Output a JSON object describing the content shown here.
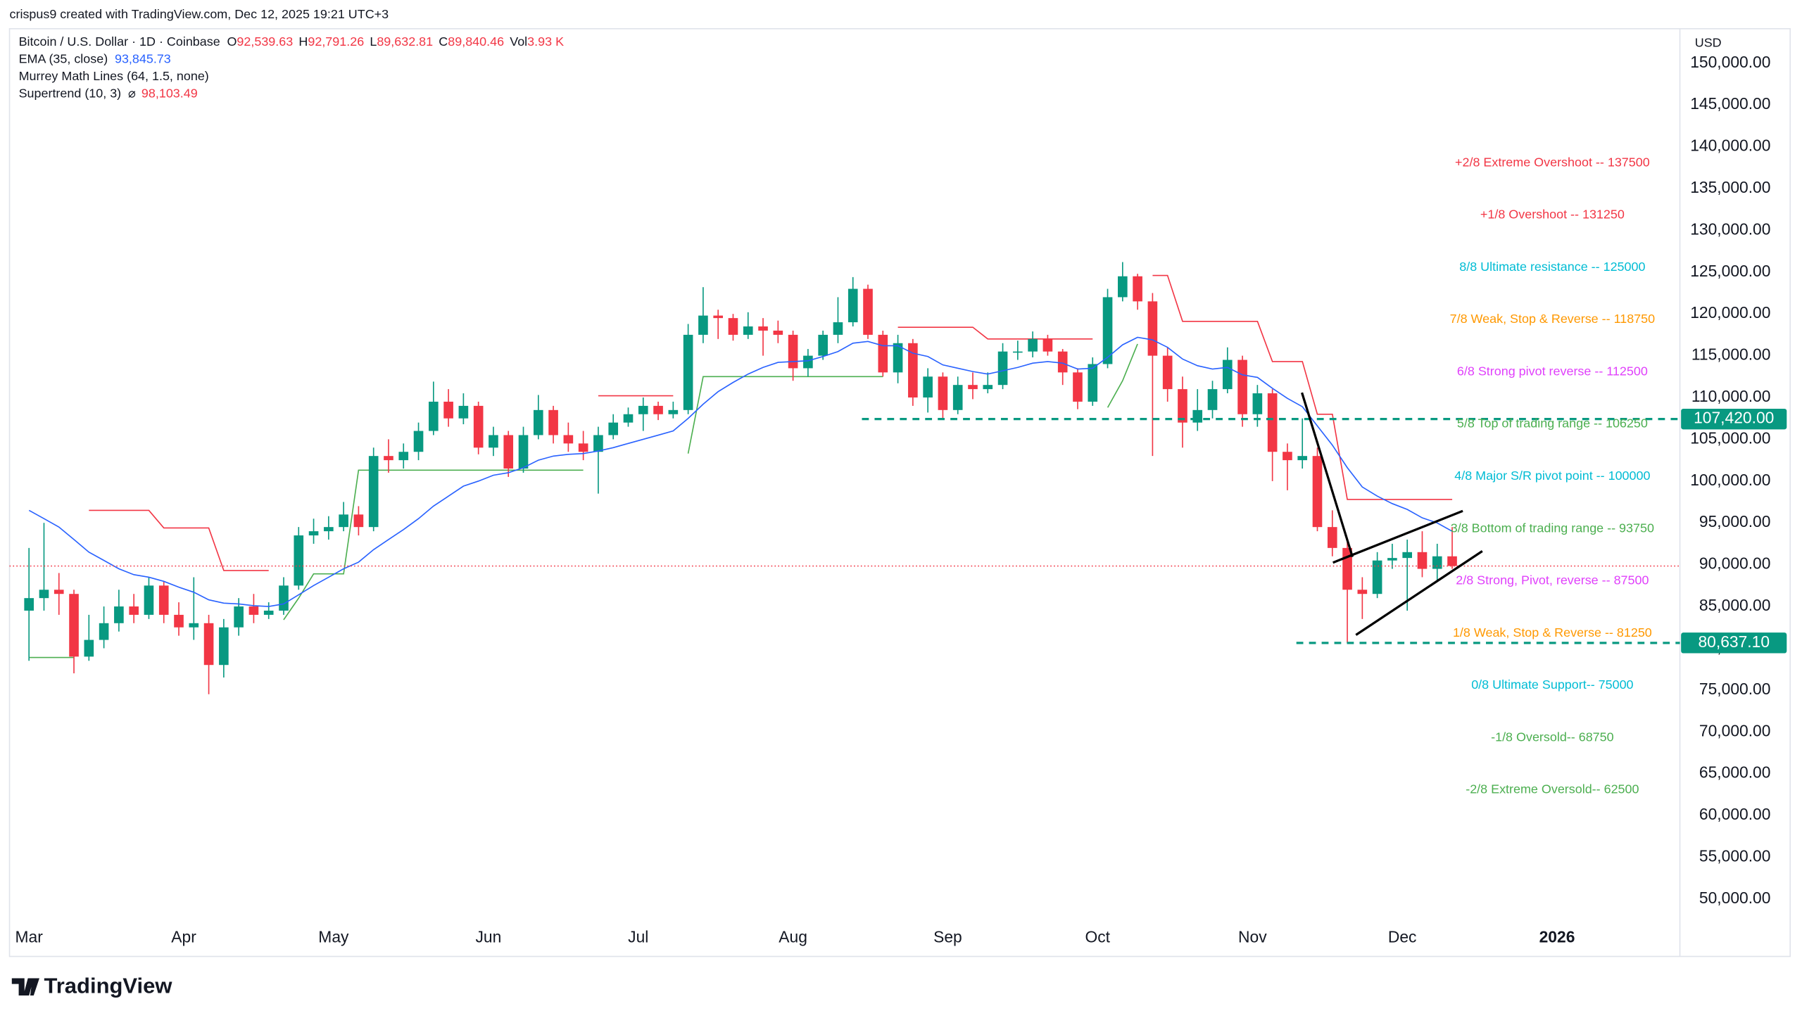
{
  "header": {
    "credit": "crispus9 created with TradingView.com, Dec 12, 2025 19:21 UTC+3",
    "logo": "TradingView",
    "currency": "USD"
  },
  "legend": {
    "symbol": "Bitcoin / U.S. Dollar · 1D · Coinbase",
    "ohlc": [
      {
        "key": "O",
        "value": "92,539.63"
      },
      {
        "key": "H",
        "value": "92,791.26"
      },
      {
        "key": "L",
        "value": "89,632.81"
      },
      {
        "key": "C",
        "value": "89,840.46"
      }
    ],
    "volume": {
      "key": "Vol",
      "value": "3.93 K"
    },
    "indicators": [
      {
        "name": "EMA (35, close)",
        "value": "93,845.73",
        "color": "#2962ff"
      },
      {
        "name": "Murrey Math Lines (64, 1.5, none)"
      },
      {
        "name": "Supertrend (10, 3)",
        "symbol": "⌀",
        "value": "98,103.49",
        "color": "#f23645"
      }
    ]
  },
  "chart_data": {
    "type": "candlestick",
    "up_color": "#089981",
    "down_color": "#f23645",
    "xlim": [
      -1.3,
      110.2
    ],
    "xticks": [
      {
        "value": 0,
        "label": "Mar"
      },
      {
        "value": 10.33,
        "label": "Apr"
      },
      {
        "value": 20.33,
        "label": "May"
      },
      {
        "value": 30.67,
        "label": "Jun"
      },
      {
        "value": 40.67,
        "label": "Jul"
      },
      {
        "value": 51,
        "label": "Aug"
      },
      {
        "value": 61.33,
        "label": "Sep"
      },
      {
        "value": 71.33,
        "label": "Oct"
      },
      {
        "value": 81.67,
        "label": "Nov"
      },
      {
        "value": 91.67,
        "label": "Dec"
      },
      {
        "value": 102,
        "label": "2026"
      }
    ],
    "ylim": [
      43130,
      154120
    ],
    "yticks": [
      {
        "value": 50000,
        "label": "50,000.00"
      },
      {
        "value": 55000,
        "label": "55,000.00"
      },
      {
        "value": 60000,
        "label": "60,000.00"
      },
      {
        "value": 65000,
        "label": "65,000.00"
      },
      {
        "value": 70000,
        "label": "70,000.00"
      },
      {
        "value": 75000,
        "label": "75,000.00"
      },
      {
        "value": 80000,
        "label": "80,000.00"
      },
      {
        "value": 85000,
        "label": "85,000.00"
      },
      {
        "value": 90000,
        "label": "90,000.00"
      },
      {
        "value": 95000,
        "label": "95,000.00"
      },
      {
        "value": 100000,
        "label": "100,000.00"
      },
      {
        "value": 105000,
        "label": "105,000.00"
      },
      {
        "value": 110000,
        "label": "110,000.00"
      },
      {
        "value": 115000,
        "label": "115,000.00"
      },
      {
        "value": 120000,
        "label": "120,000.00"
      },
      {
        "value": 125000,
        "label": "125,000.00"
      },
      {
        "value": 130000,
        "label": "130,000.00"
      },
      {
        "value": 135000,
        "label": "135,000.00"
      },
      {
        "value": 140000,
        "label": "140,000.00"
      },
      {
        "value": 145000,
        "label": "145,000.00"
      },
      {
        "value": 150000,
        "label": "150,000.00"
      }
    ],
    "open": [
      84500,
      86000,
      87000,
      86500,
      79000,
      81000,
      83000,
      85000,
      84000,
      87500,
      84000,
      82500,
      83000,
      78000,
      82500,
      85000,
      84000,
      84500,
      87500,
      93500,
      94000,
      94500,
      96000,
      94500,
      103000,
      102500,
      103500,
      106000,
      109500,
      107500,
      109000,
      104000,
      105500,
      101500,
      105500,
      108500,
      105500,
      104500,
      103500,
      105500,
      107000,
      108000,
      109000,
      108000,
      108500,
      117500,
      119800,
      119500,
      117500,
      118500,
      118000,
      117500,
      113500,
      115000,
      117500,
      119000,
      123000,
      117500,
      113000,
      116500,
      110000,
      112500,
      108500,
      111500,
      111000,
      111500,
      115500,
      115500,
      117000,
      115500,
      113000,
      109500,
      114000,
      122000,
      124500,
      121500,
      115000,
      111000,
      107000,
      108500,
      111000,
      114500,
      108000,
      110500,
      103500,
      102500,
      103000,
      94500,
      92000,
      87000,
      86500,
      90500,
      90800,
      91500,
      89500,
      91000
    ],
    "high": [
      92000,
      95000,
      89000,
      87000,
      84000,
      85000,
      87000,
      86500,
      88500,
      88000,
      85500,
      88500,
      84000,
      83500,
      86000,
      86500,
      85500,
      88500,
      94500,
      95500,
      95800,
      97500,
      97000,
      104000,
      105000,
      104500,
      107000,
      111900,
      111000,
      110500,
      109500,
      106500,
      106000,
      106500,
      110300,
      109000,
      107000,
      106000,
      106500,
      108000,
      108800,
      110000,
      109500,
      109500,
      118800,
      123200,
      120500,
      120000,
      120200,
      119500,
      119200,
      118000,
      115800,
      118000,
      122000,
      124400,
      123500,
      118000,
      117500,
      117000,
      113500,
      113000,
      112500,
      113000,
      113000,
      116500,
      116800,
      117900,
      117500,
      115800,
      113500,
      114800,
      123000,
      126200,
      124800,
      122500,
      116000,
      112500,
      111000,
      112000,
      116000,
      115000,
      111500,
      111000,
      104500,
      107500,
      104000,
      96500,
      93000,
      88500,
      91500,
      92500,
      93000,
      94000,
      92500,
      94500
    ],
    "low": [
      78500,
      84500,
      84000,
      77000,
      78500,
      80000,
      82000,
      83000,
      83500,
      83000,
      81500,
      81000,
      74500,
      76500,
      81500,
      83000,
      83500,
      84000,
      87000,
      92500,
      93000,
      94000,
      93500,
      94000,
      101000,
      101500,
      102500,
      105500,
      106500,
      106800,
      103200,
      103000,
      100500,
      101000,
      105000,
      104500,
      103500,
      102500,
      98500,
      105000,
      106500,
      106000,
      107300,
      107500,
      108000,
      116500,
      117000,
      116800,
      117000,
      115000,
      116500,
      112000,
      112500,
      114500,
      116500,
      118500,
      117000,
      112500,
      111700,
      109000,
      108200,
      107500,
      108000,
      109800,
      110500,
      111000,
      114500,
      114800,
      115000,
      111500,
      108600,
      109000,
      113500,
      121500,
      120500,
      103000,
      109500,
      104000,
      106000,
      107500,
      110500,
      106500,
      106500,
      100000,
      98900,
      101500,
      94000,
      91000,
      80637,
      83500,
      86000,
      89500,
      84500,
      88500,
      88000,
      89500
    ],
    "close": [
      86000,
      87000,
      86500,
      79000,
      81000,
      83000,
      85000,
      84000,
      87500,
      84000,
      82500,
      83000,
      78000,
      82500,
      85000,
      84000,
      84500,
      87500,
      93500,
      94000,
      94500,
      96000,
      94500,
      103000,
      102500,
      103500,
      106000,
      109500,
      107500,
      109000,
      104000,
      105500,
      101500,
      105500,
      108500,
      105500,
      104500,
      103500,
      105500,
      107000,
      108000,
      109000,
      108000,
      108500,
      117500,
      119800,
      119500,
      117500,
      118500,
      118000,
      117500,
      113500,
      115000,
      117500,
      119000,
      123000,
      117500,
      113000,
      116500,
      110000,
      112500,
      108500,
      111500,
      111000,
      111500,
      115500,
      115500,
      117000,
      115500,
      113000,
      109500,
      114000,
      122000,
      124500,
      121500,
      115000,
      111000,
      107000,
      108500,
      111000,
      114500,
      108000,
      110500,
      103500,
      102500,
      103000,
      94500,
      92000,
      87000,
      86500,
      90500,
      90800,
      91500,
      89500,
      91000,
      89840
    ],
    "ema": {
      "color": "#2962ff",
      "values": [
        96500,
        95500,
        94500,
        93000,
        91500,
        90500,
        89500,
        88800,
        88500,
        88000,
        87300,
        86700,
        85800,
        85400,
        85300,
        85100,
        85000,
        85300,
        86400,
        87500,
        88500,
        89500,
        90300,
        91800,
        93000,
        94200,
        95500,
        97000,
        98200,
        99400,
        100000,
        100700,
        101000,
        101600,
        102500,
        103000,
        103200,
        103300,
        103600,
        104000,
        104500,
        105000,
        105500,
        106000,
        107500,
        109200,
        110700,
        111800,
        112800,
        113600,
        114200,
        114300,
        114400,
        114900,
        115500,
        116500,
        116700,
        116200,
        116200,
        115300,
        114900,
        113900,
        113500,
        113100,
        112800,
        113200,
        113600,
        114100,
        114300,
        114100,
        113400,
        113500,
        114800,
        116300,
        117200,
        116900,
        116000,
        114600,
        113800,
        113400,
        113600,
        112700,
        112400,
        111100,
        109900,
        108900,
        106600,
        104300,
        101600,
        99300,
        98200,
        97300,
        96600,
        95600,
        95000,
        94000
      ]
    },
    "supertrend": {
      "down_color": "#f23645",
      "up_color": "#4caf50",
      "down": [
        null,
        null,
        null,
        null,
        96500,
        96500,
        96500,
        96500,
        96500,
        94400,
        94400,
        94400,
        94400,
        89300,
        89300,
        89300,
        89300,
        null,
        null,
        null,
        null,
        null,
        null,
        null,
        null,
        null,
        null,
        null,
        null,
        null,
        null,
        null,
        null,
        null,
        null,
        null,
        null,
        null,
        110200,
        110200,
        110200,
        110200,
        110200,
        110200,
        null,
        null,
        null,
        null,
        null,
        null,
        null,
        null,
        null,
        null,
        null,
        null,
        null,
        null,
        118400,
        118400,
        118400,
        118400,
        118400,
        118400,
        117000,
        117000,
        117000,
        117000,
        117000,
        117000,
        117000,
        117000,
        null,
        null,
        null,
        124600,
        124600,
        119100,
        119100,
        119100,
        119100,
        119100,
        119100,
        114300,
        114300,
        114300,
        108000,
        108000,
        97800,
        97800,
        97800,
        97800,
        97800,
        97800,
        97800,
        97800
      ],
      "up": [
        78900,
        78900,
        78900,
        78900,
        null,
        null,
        null,
        null,
        null,
        null,
        null,
        null,
        null,
        null,
        null,
        null,
        null,
        83400,
        86000,
        88900,
        88900,
        88900,
        101300,
        101300,
        101300,
        101300,
        101300,
        101300,
        101300,
        101300,
        101300,
        101300,
        101300,
        101300,
        101300,
        101300,
        101300,
        101300,
        null,
        null,
        null,
        null,
        null,
        null,
        103300,
        112500,
        112500,
        112500,
        112500,
        112500,
        112500,
        112500,
        112500,
        112500,
        112500,
        112500,
        112500,
        112500,
        null,
        null,
        null,
        null,
        null,
        null,
        null,
        null,
        null,
        null,
        null,
        null,
        null,
        null,
        108800,
        112000,
        116400,
        null,
        null,
        null,
        null,
        null,
        null,
        null,
        null,
        null,
        null,
        null,
        null,
        null,
        null,
        null,
        null,
        null,
        null,
        null,
        null,
        null
      ]
    },
    "murrey": [
      {
        "label": "+2/8 Extreme Overshoot -- 137500",
        "value": 137500,
        "color": "#f23645"
      },
      {
        "label": "+1/8 Overshoot -- 131250",
        "value": 131250,
        "color": "#f23645"
      },
      {
        "label": "8/8 Ultimate resistance -- 125000",
        "value": 125000,
        "color": "#00bcd4"
      },
      {
        "label": "7/8 Weak, Stop & Reverse -- 118750",
        "value": 118750,
        "color": "#ff9800"
      },
      {
        "label": "6/8 Strong pivot reverse -- 112500",
        "value": 112500,
        "color": "#e040fb"
      },
      {
        "label": "5/8 Top of trading range -- 106250",
        "value": 106250,
        "color": "#4caf50"
      },
      {
        "label": "4/8 Major S/R pivot point -- 100000",
        "value": 100000,
        "color": "#00bcd4"
      },
      {
        "label": "3/8 Bottom of trading range -- 93750",
        "value": 93750,
        "color": "#4caf50"
      },
      {
        "label": "2/8 Strong, Pivot, reverse -- 87500",
        "value": 87500,
        "color": "#e040fb"
      },
      {
        "label": "1/8 Weak, Stop & Reverse -- 81250",
        "value": 81250,
        "color": "#ff9800"
      },
      {
        "label": "0/8 Ultimate Support-- 75000",
        "value": 75000,
        "color": "#00bcd4"
      },
      {
        "label": "-1/8 Oversold-- 68750",
        "value": 68750,
        "color": "#4caf50"
      },
      {
        "label": "-2/8 Extreme Oversold-- 62500",
        "value": 62500,
        "color": "#4caf50"
      }
    ],
    "price_lines": [
      {
        "value": 107420,
        "label": "107,420.00",
        "start": 55.6,
        "color": "#089981"
      },
      {
        "value": 80637.1,
        "label": "80,637.10",
        "start": 84.6,
        "color": "#089981"
      }
    ]
  }
}
